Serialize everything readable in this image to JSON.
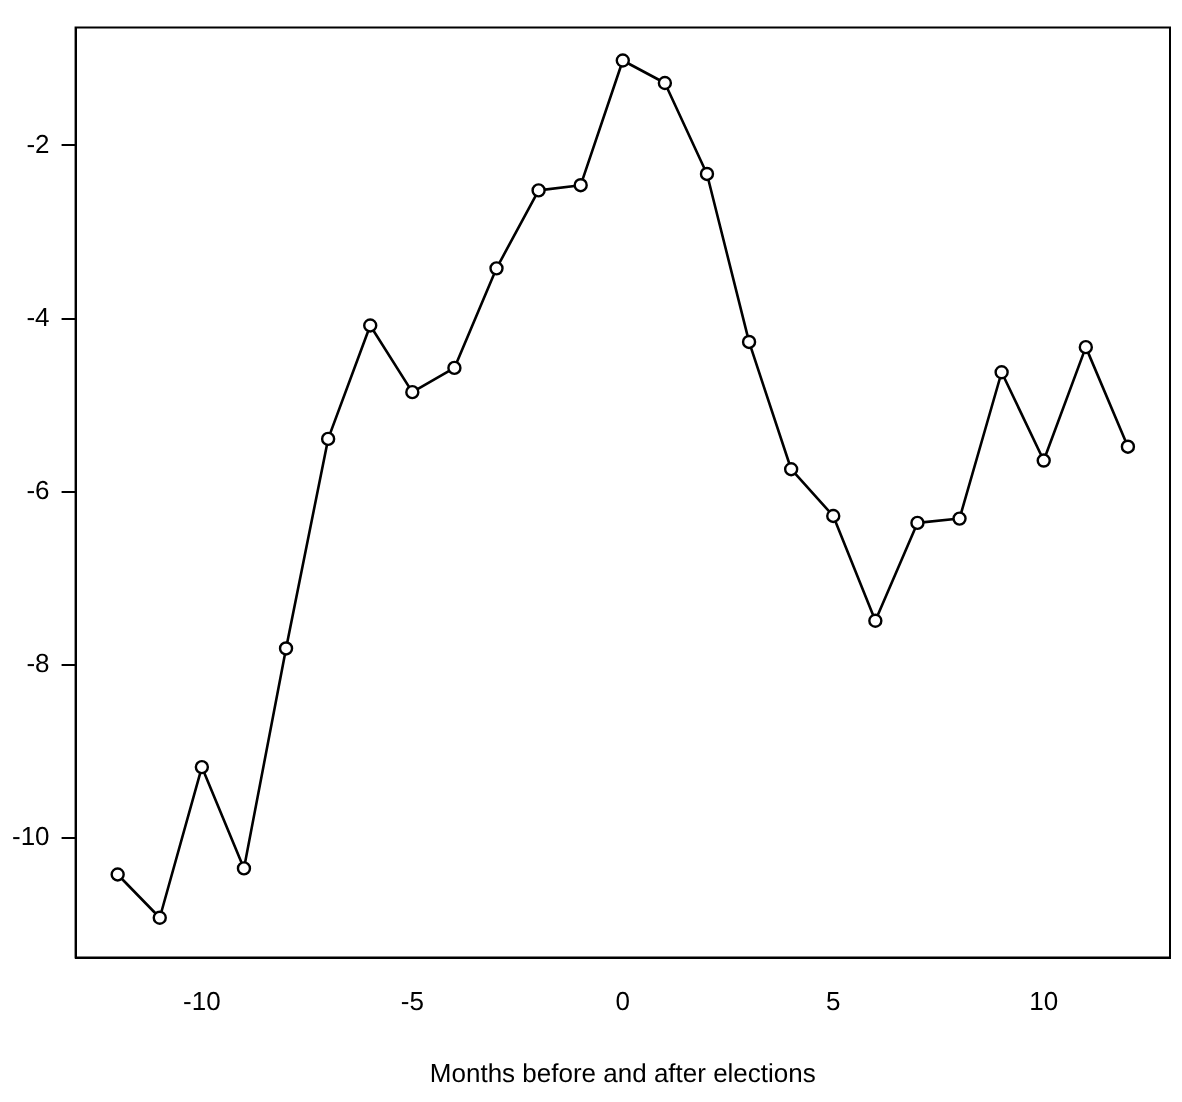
{
  "chart_data": {
    "type": "line",
    "xlabel": "Months before and after elections",
    "x": [
      -12,
      -11,
      -10,
      -9,
      -8,
      -7,
      -6,
      -5,
      -4,
      -3,
      -2,
      -1,
      0,
      1,
      2,
      3,
      4,
      5,
      6,
      7,
      8,
      9,
      10,
      11,
      12
    ],
    "series": [
      {
        "color": "#000000",
        "values": [
          -10.42,
          -10.92,
          -9.18,
          -10.35,
          -7.81,
          -5.39,
          -4.08,
          -4.85,
          -4.57,
          -3.42,
          -2.52,
          -2.46,
          -1.02,
          -1.28,
          -2.33,
          -4.27,
          -5.74,
          -6.28,
          -7.49,
          -6.36,
          -6.31,
          -4.62,
          -5.64,
          -4.33,
          -5.48
        ]
      }
    ],
    "xlim": [
      -13,
      13
    ],
    "xticks": [
      -10,
      -5,
      0,
      5,
      10
    ],
    "ylim": [
      -11.38,
      -0.64
    ],
    "yticks": [
      -10,
      -8,
      -6,
      -4,
      -2
    ],
    "marker": "circle",
    "line_style": "solid",
    "grid": false,
    "legend": false
  }
}
